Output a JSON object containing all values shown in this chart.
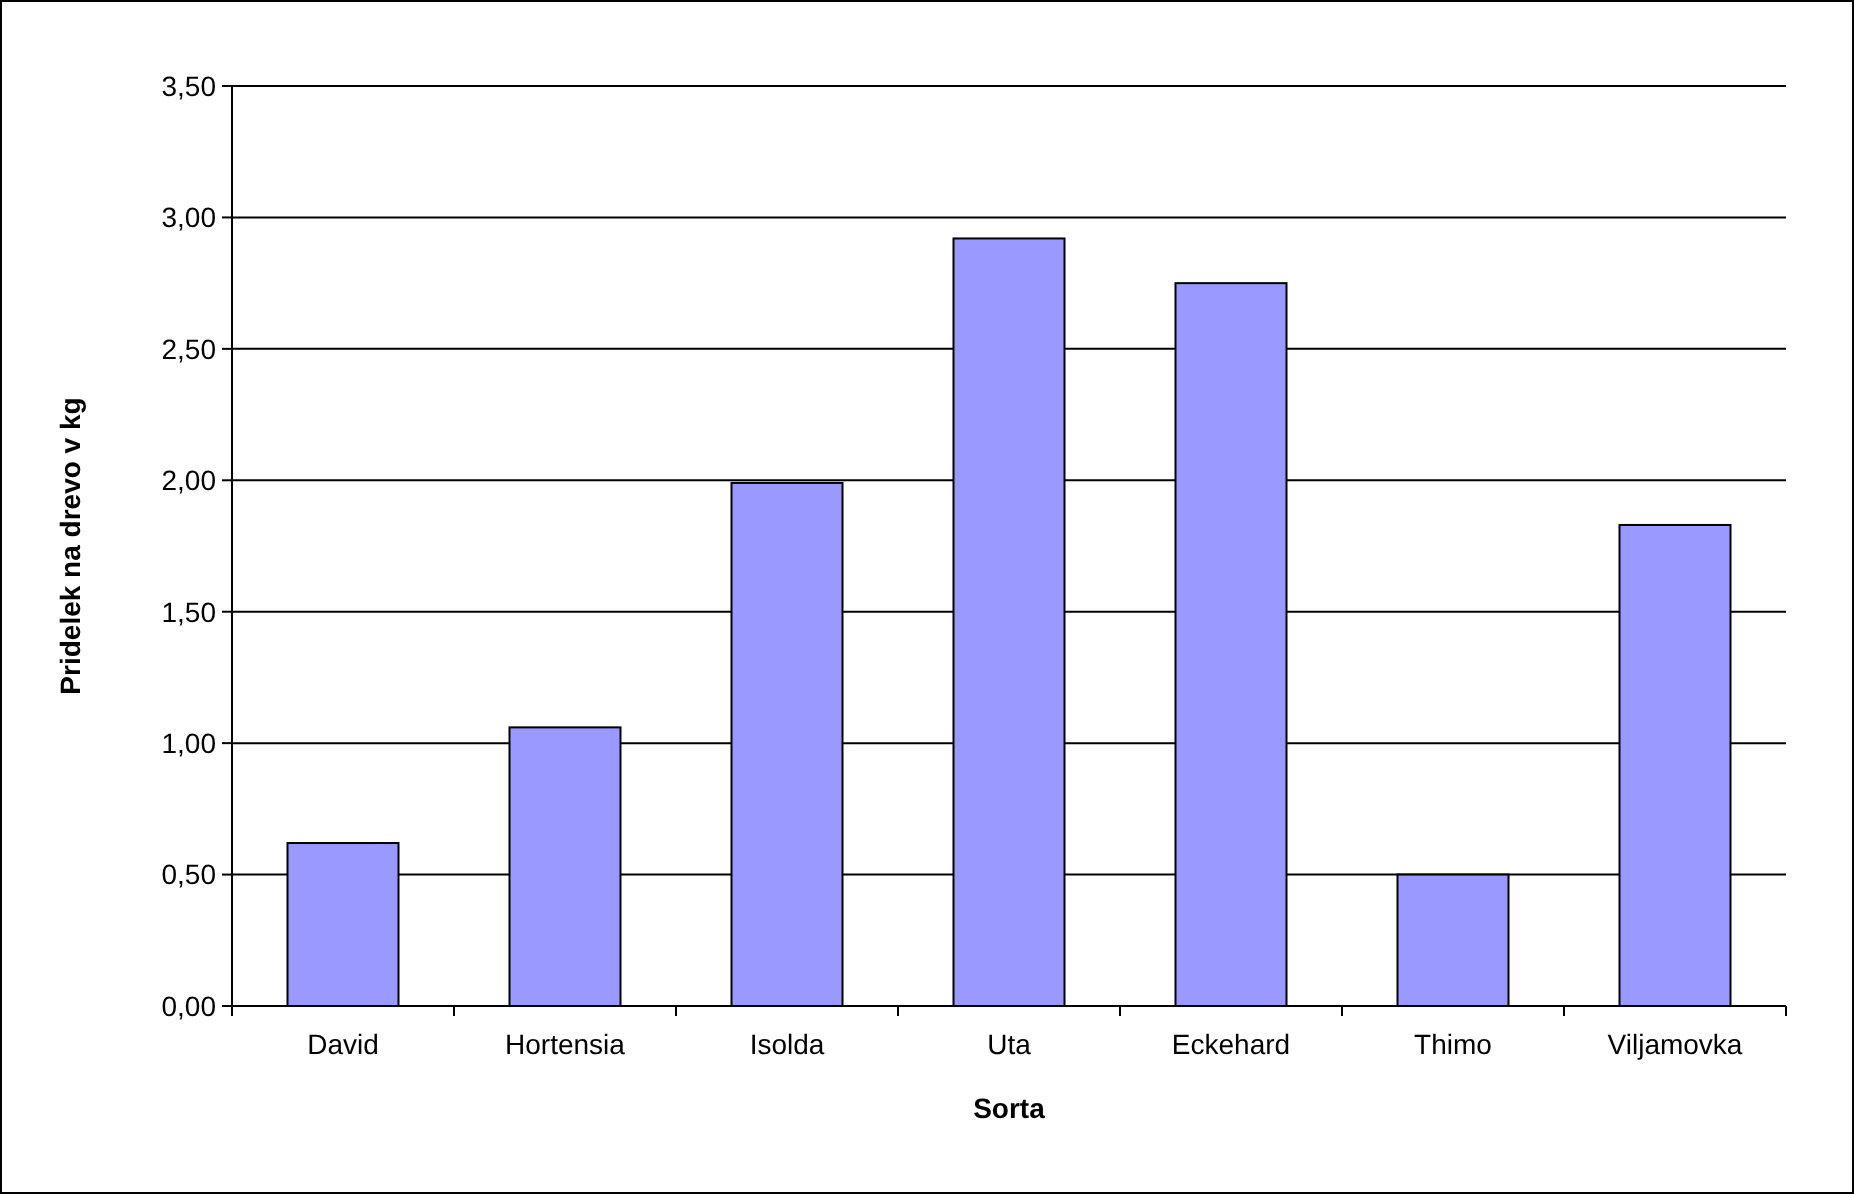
{
  "chart_data": {
    "type": "bar",
    "xlabel": "Sorta",
    "ylabel": "Pridelek na drevo v kg",
    "categories": [
      "David",
      "Hortensia",
      "Isolda",
      "Uta",
      "Eckehard",
      "Thimo",
      "Viljamovka"
    ],
    "values": [
      0.62,
      1.06,
      1.99,
      2.92,
      2.75,
      0.5,
      1.83
    ],
    "color": "#9999ff",
    "ylim": [
      0,
      3.5
    ],
    "yticks": [
      {
        "value": 0,
        "label": "0,00"
      },
      {
        "value": 0.5,
        "label": "0,50"
      },
      {
        "value": 1,
        "label": "1,00"
      },
      {
        "value": 1.5,
        "label": "1,50"
      },
      {
        "value": 2,
        "label": "2,00"
      },
      {
        "value": 2.5,
        "label": "2,50"
      },
      {
        "value": 3,
        "label": "3,00"
      },
      {
        "value": 3.5,
        "label": "3,50"
      }
    ],
    "grid": "y"
  }
}
